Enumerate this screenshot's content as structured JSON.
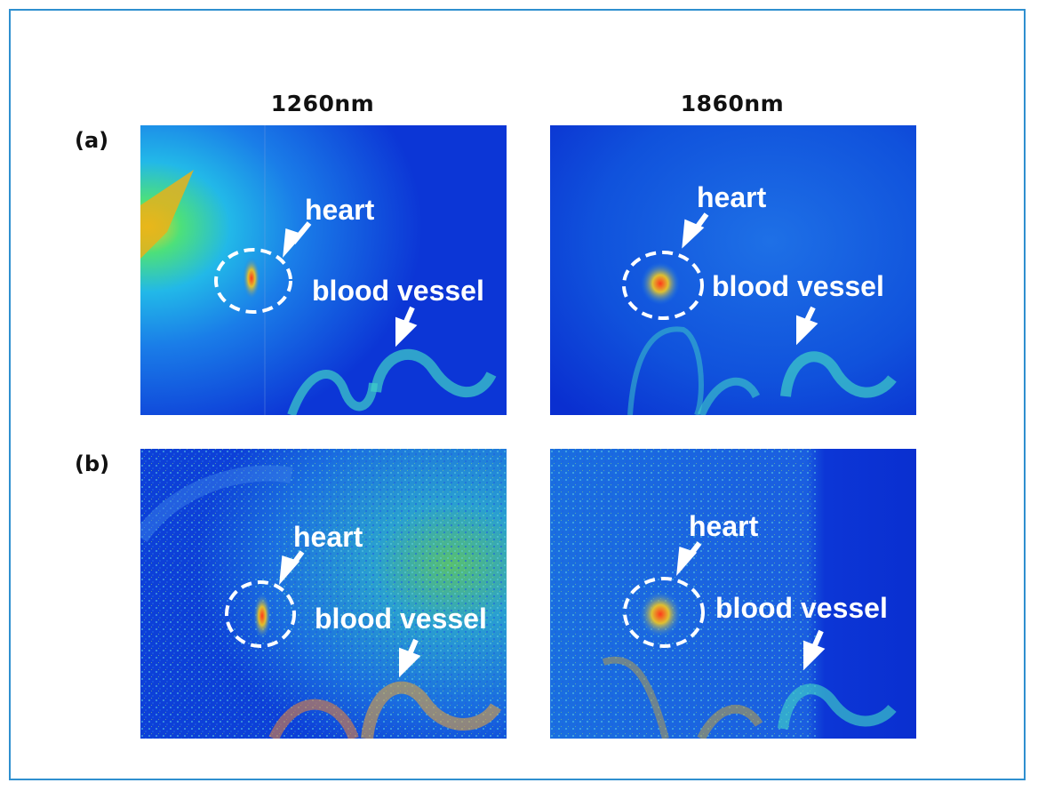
{
  "columns": {
    "left": "1260nm",
    "right": "1860nm"
  },
  "rows": {
    "a": "(a)",
    "b": "(b)"
  },
  "annotations": {
    "heart": "heart",
    "vessel": "blood vessel"
  },
  "colors": {
    "frame": "#2f8fcf",
    "banner_start": "#2488c8",
    "background_blue": "#0a2fd0"
  },
  "icons": [
    "arrow-icon",
    "dashed-circle-icon"
  ]
}
